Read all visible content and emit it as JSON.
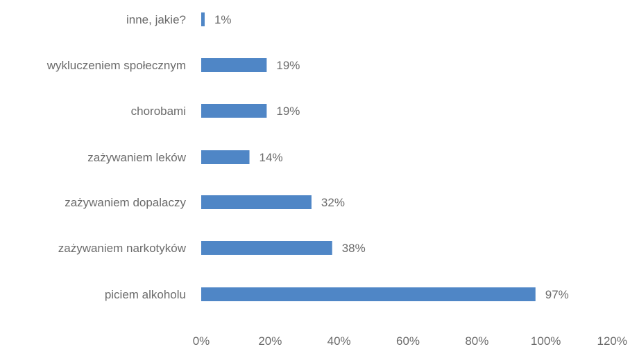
{
  "chart_data": {
    "type": "bar",
    "orientation": "horizontal",
    "categories": [
      "inne, jakie?",
      "wykluczeniem społecznym",
      "chorobami",
      "zażywaniem leków",
      "zażywaniem dopalaczy",
      "zażywaniem narkotyków",
      "piciem alkoholu"
    ],
    "values": [
      1,
      19,
      19,
      14,
      32,
      38,
      97
    ],
    "value_labels": [
      "1%",
      "19%",
      "19%",
      "14%",
      "32%",
      "38%",
      "97%"
    ],
    "xlim": [
      0,
      120
    ],
    "x_ticks": [
      "0%",
      "20%",
      "40%",
      "60%",
      "80%",
      "100%",
      "120%"
    ],
    "bar_color": "#4f86c6",
    "text_color": "#6b6b6b",
    "grid": false,
    "legend": "none",
    "title": "",
    "xlabel": "",
    "ylabel": ""
  }
}
